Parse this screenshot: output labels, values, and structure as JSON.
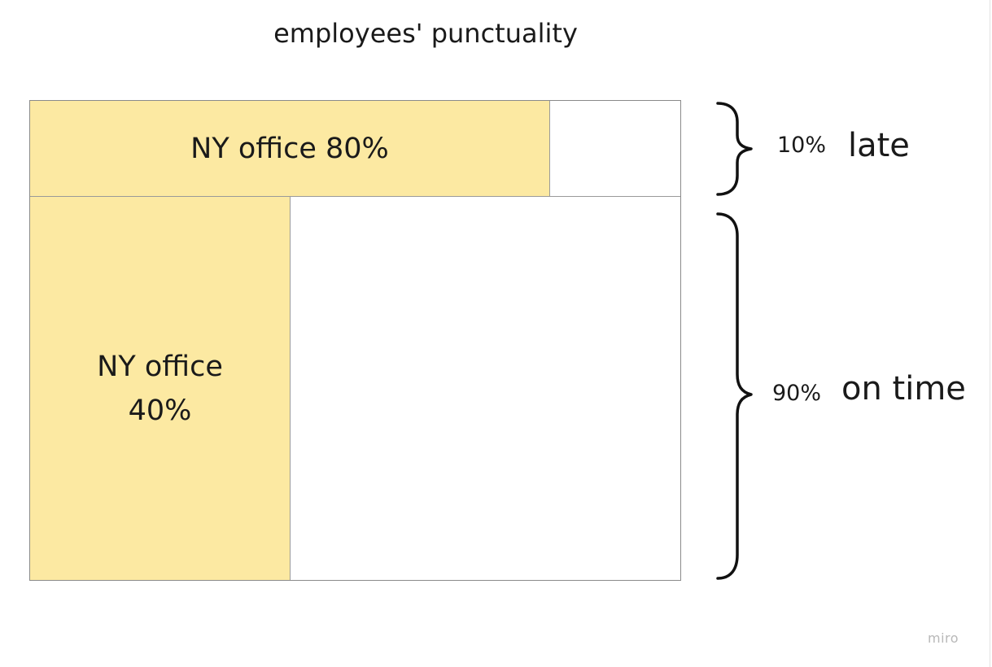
{
  "title": "employees' punctuality",
  "top_row": {
    "label": "NY office 80%",
    "share_of_row": 0.8,
    "row_share_percent": "10%",
    "row_label": "late"
  },
  "bottom_row": {
    "label_line1": "NY office",
    "label_line2": "40%",
    "share_of_row": 0.4,
    "row_share_percent": "90%",
    "row_label": "on time"
  },
  "colors": {
    "highlight": "#fce9a2",
    "border": "#8a8a8a",
    "brace": "#111111"
  },
  "watermark": "miro"
}
